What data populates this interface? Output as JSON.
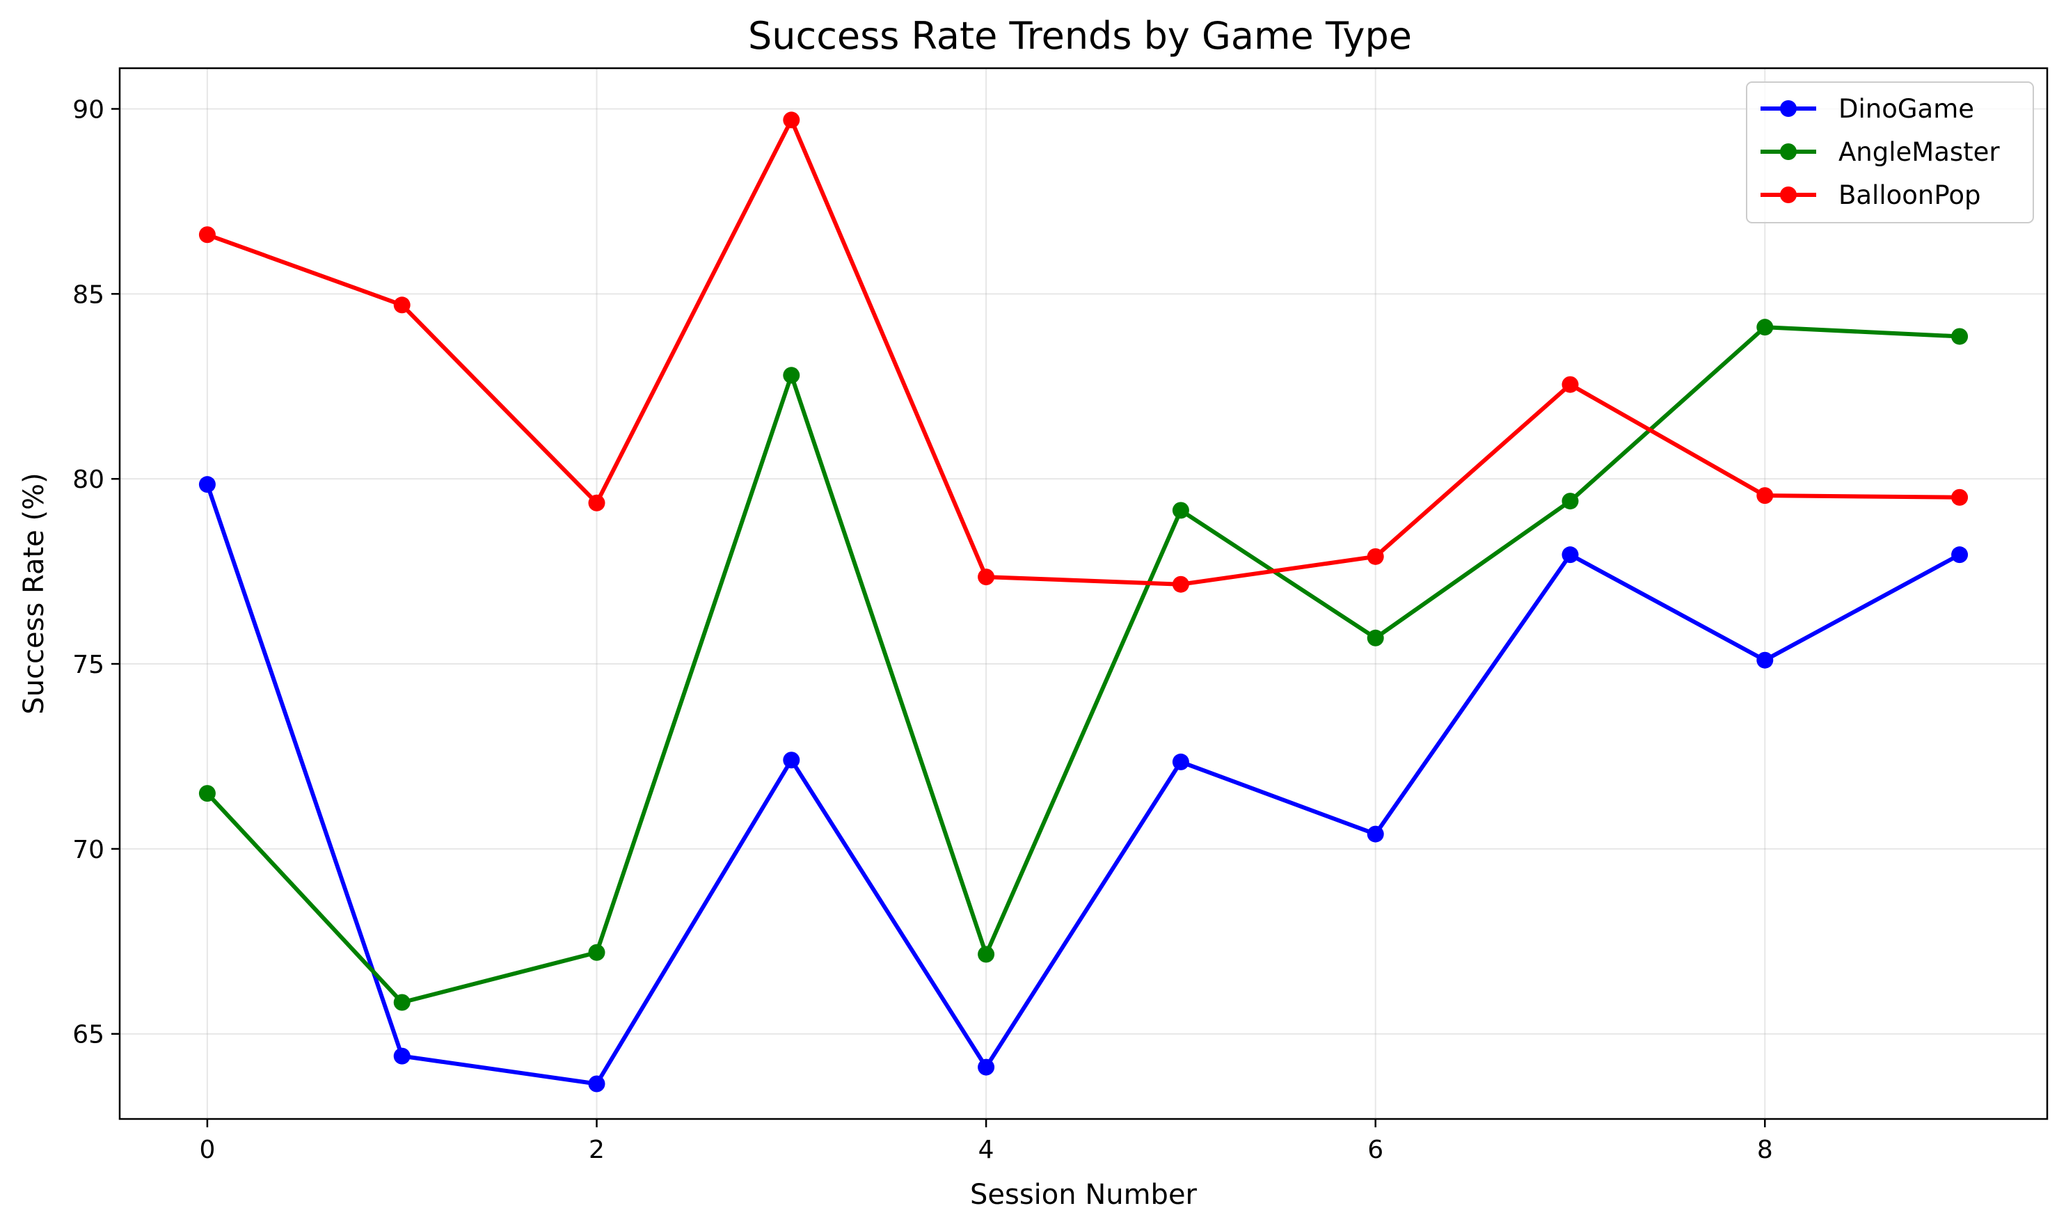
{
  "chart_data": {
    "type": "line",
    "title": "Success Rate Trends by Game Type",
    "xlabel": "Session Number",
    "ylabel": "Success Rate (%)",
    "x": [
      0,
      1,
      2,
      3,
      4,
      5,
      6,
      7,
      8,
      9
    ],
    "xlim": [
      -0.45,
      9.45
    ],
    "ylim": [
      62.7,
      91.1
    ],
    "xticks": [
      0,
      2,
      4,
      6,
      8
    ],
    "yticks": [
      65,
      70,
      75,
      80,
      85,
      90
    ],
    "grid": true,
    "legend_position": "top-right",
    "series": [
      {
        "name": "DinoGame",
        "color": "#0000ff",
        "values": [
          79.85,
          64.4,
          63.65,
          72.4,
          64.1,
          72.35,
          70.4,
          77.95,
          75.1,
          77.95
        ]
      },
      {
        "name": "AngleMaster",
        "color": "#008000",
        "values": [
          71.5,
          65.85,
          67.2,
          82.8,
          67.15,
          79.15,
          75.7,
          79.4,
          84.1,
          83.85
        ]
      },
      {
        "name": "BalloonPop",
        "color": "#ff0000",
        "values": [
          86.6,
          84.7,
          79.35,
          89.7,
          77.35,
          77.15,
          77.9,
          82.55,
          79.55,
          79.5
        ]
      }
    ]
  }
}
